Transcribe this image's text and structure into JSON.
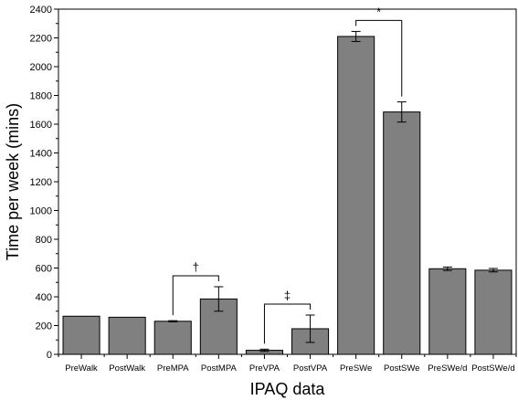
{
  "chart_data": {
    "type": "bar",
    "xlabel": "IPAQ data",
    "ylabel": "Time per week (mins)",
    "ylim": [
      0,
      2400
    ],
    "yticks": [
      0,
      200,
      400,
      600,
      800,
      1000,
      1200,
      1400,
      1600,
      1800,
      2000,
      2200,
      2400
    ],
    "bar_color": "#808080",
    "categories": [
      "PreWalk",
      "PostWalk",
      "PreMPA",
      "PostMPA",
      "PreVPA",
      "PostVPA",
      "PreSWe",
      "PostSWe",
      "PreSWe/d",
      "PostSWe/d"
    ],
    "values": [
      265,
      258,
      230,
      385,
      28,
      178,
      2210,
      1685,
      595,
      585
    ],
    "errors": [
      0,
      0,
      4,
      85,
      8,
      95,
      35,
      70,
      12,
      12
    ],
    "significance": [
      {
        "from": "PreMPA",
        "to": "PostMPA",
        "symbol": "†"
      },
      {
        "from": "PreVPA",
        "to": "PostVPA",
        "symbol": "‡"
      },
      {
        "from": "PreSWe",
        "to": "PostSWe",
        "symbol": "*"
      }
    ]
  }
}
